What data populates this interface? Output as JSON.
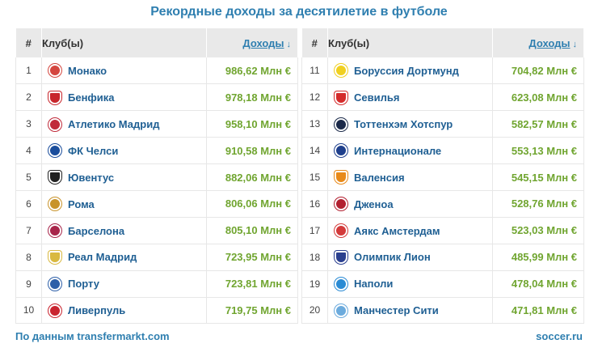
{
  "title": "Рекордные доходы за десятилетие в футболе",
  "header": {
    "num": "#",
    "club": "Клуб(ы)",
    "income": "Доходы",
    "sort_arrow": "↓"
  },
  "left": [
    {
      "rank": "1",
      "club": "Монако",
      "income": "986,62 Млн €",
      "logo": "monaco-logo",
      "color": "#d4463f"
    },
    {
      "rank": "2",
      "club": "Бенфика",
      "income": "978,18 Млн €",
      "logo": "benfica-logo",
      "color": "#c8262c"
    },
    {
      "rank": "3",
      "club": "Атлетико Мадрид",
      "income": "958,10 Млн €",
      "logo": "atletico-logo",
      "color": "#c02a3a"
    },
    {
      "rank": "4",
      "club": "ФК Челси",
      "income": "910,58 Млн €",
      "logo": "chelsea-logo",
      "color": "#1a4d9c"
    },
    {
      "rank": "5",
      "club": "Ювентус",
      "income": "882,06 Млн €",
      "logo": "juventus-logo",
      "color": "#222222"
    },
    {
      "rank": "6",
      "club": "Рома",
      "income": "806,06 Млн €",
      "logo": "roma-logo",
      "color": "#c8932a"
    },
    {
      "rank": "7",
      "club": "Барселона",
      "income": "805,10 Млн €",
      "logo": "barcelona-logo",
      "color": "#a8254a"
    },
    {
      "rank": "8",
      "club": "Реал Мадрид",
      "income": "723,95 Млн €",
      "logo": "real-madrid-logo",
      "color": "#d9b940"
    },
    {
      "rank": "9",
      "club": "Порту",
      "income": "723,81 Млн €",
      "logo": "porto-logo",
      "color": "#2d5fa8"
    },
    {
      "rank": "10",
      "club": "Ливерпуль",
      "income": "719,75 Млн €",
      "logo": "liverpool-logo",
      "color": "#c9242f"
    }
  ],
  "right": [
    {
      "rank": "11",
      "club": "Боруссия Дортмунд",
      "income": "704,82 Млн €",
      "logo": "dortmund-logo",
      "color": "#f0d020"
    },
    {
      "rank": "12",
      "club": "Севилья",
      "income": "623,08 Млн €",
      "logo": "sevilla-logo",
      "color": "#d42b2b"
    },
    {
      "rank": "13",
      "club": "Тоттенхэм Хотспур",
      "income": "582,57 Млн €",
      "logo": "tottenham-logo",
      "color": "#1b2a4a"
    },
    {
      "rank": "14",
      "club": "Интернационале",
      "income": "553,13 Млн €",
      "logo": "inter-logo",
      "color": "#1e3f8c"
    },
    {
      "rank": "15",
      "club": "Валенсия",
      "income": "545,15 Млн €",
      "logo": "valencia-logo",
      "color": "#e88a1a"
    },
    {
      "rank": "16",
      "club": "Дженоа",
      "income": "528,76 Млн €",
      "logo": "genoa-logo",
      "color": "#b22030"
    },
    {
      "rank": "17",
      "club": "Аякс Амстердам",
      "income": "523,03 Млн €",
      "logo": "ajax-logo",
      "color": "#d33a3a"
    },
    {
      "rank": "18",
      "club": "Олимпик Лион",
      "income": "485,99 Млн €",
      "logo": "lyon-logo",
      "color": "#2a3f8f"
    },
    {
      "rank": "19",
      "club": "Наполи",
      "income": "478,04 Млн €",
      "logo": "napoli-logo",
      "color": "#2a8bd4"
    },
    {
      "rank": "20",
      "club": "Манчестер Сити",
      "income": "471,81 Млн €",
      "logo": "man-city-logo",
      "color": "#6cabdd"
    }
  ],
  "footer": {
    "source": "По данным transfermarkt.com",
    "brand": "soccer.ru"
  },
  "colors": {
    "title": "#2f7fb0",
    "club_link": "#1f5f93",
    "income": "#70a530",
    "header_bg": "#e9e9e9"
  }
}
